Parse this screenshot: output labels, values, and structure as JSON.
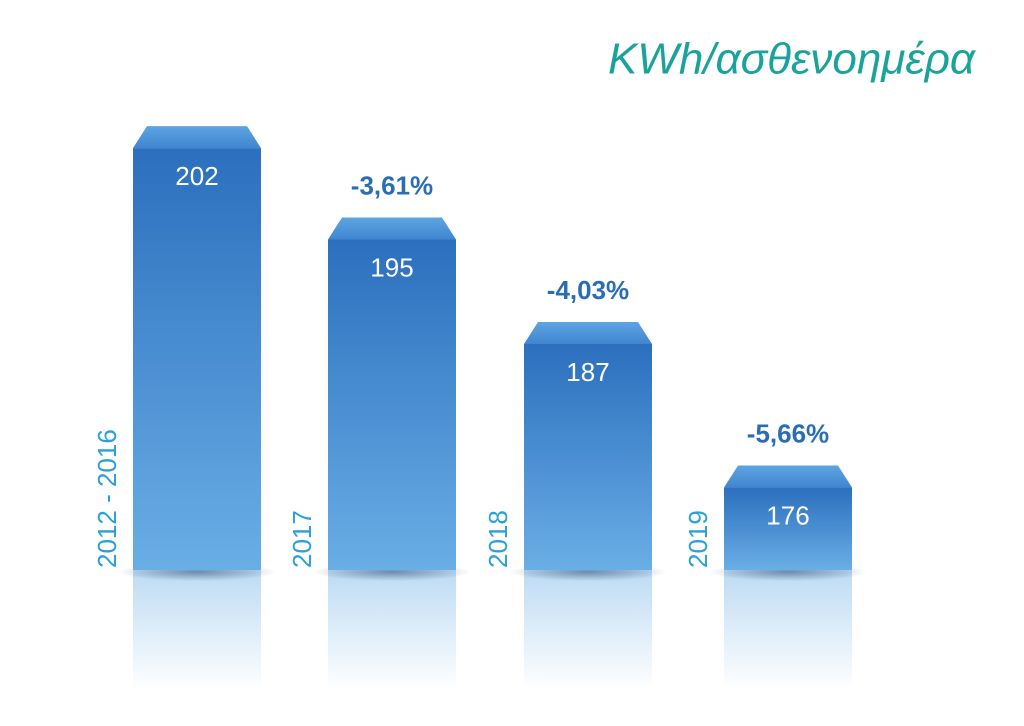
{
  "chart_data": {
    "type": "bar",
    "title": "KWh/ασθενοημέρα",
    "categories": [
      "2012 - 2016",
      "2017",
      "2018",
      "2019"
    ],
    "values": [
      202,
      195,
      187,
      176
    ],
    "annotations": [
      null,
      "-3,61%",
      "-4,03%",
      "-5,66%"
    ],
    "ylim": [
      168,
      204
    ],
    "color": "#4a8fd6"
  }
}
